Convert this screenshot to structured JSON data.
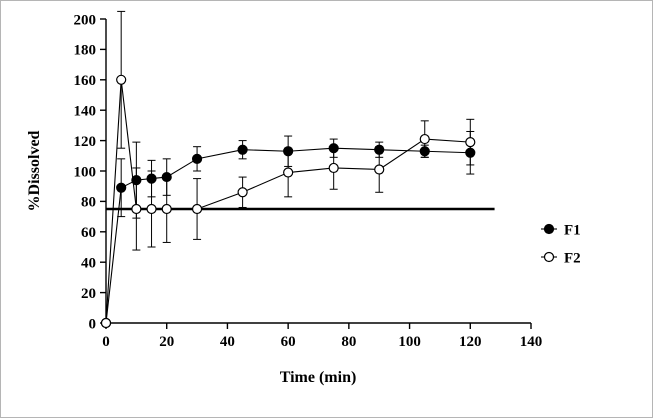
{
  "chart_data": {
    "type": "line",
    "title": "",
    "xlabel": "Time (min)",
    "ylabel": "%Dissolved",
    "xlim": [
      0,
      140
    ],
    "ylim": [
      0,
      200
    ],
    "x_tick_step": 20,
    "y_tick_step": 20,
    "grid": false,
    "legend_position": "right-middle",
    "x": [
      0,
      5,
      10,
      15,
      20,
      30,
      45,
      60,
      75,
      90,
      105,
      120
    ],
    "series": [
      {
        "name": "F1",
        "marker": "filled-circle",
        "line_color": "#000000",
        "values": [
          0,
          89,
          94,
          95,
          96,
          108,
          114,
          113,
          115,
          114,
          113,
          112
        ],
        "errors": [
          0,
          19,
          25,
          12,
          12,
          8,
          6,
          10,
          6,
          5,
          4,
          14
        ]
      },
      {
        "name": "F2",
        "marker": "open-circle",
        "line_color": "#000000",
        "values": [
          0,
          160,
          75,
          75,
          75,
          75,
          86,
          99,
          102,
          101,
          121,
          119
        ],
        "errors": [
          0,
          45,
          27,
          25,
          22,
          20,
          10,
          16,
          14,
          15,
          12,
          15
        ]
      }
    ],
    "reference_line": {
      "y": 75,
      "x_start": 0,
      "x_end": 128,
      "color": "#000000"
    },
    "legend": [
      {
        "label": "F1",
        "marker": "filled-circle"
      },
      {
        "label": "F2",
        "marker": "open-circle"
      }
    ]
  }
}
